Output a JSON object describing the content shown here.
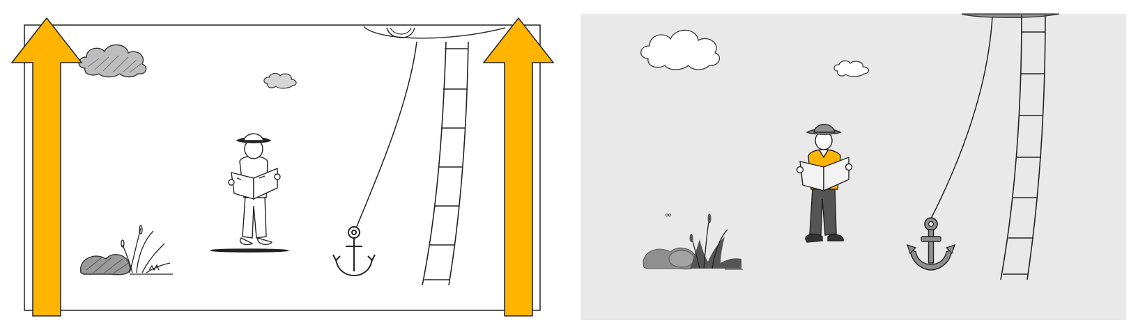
{
  "colors": {
    "background": "#ffffff",
    "right_panel_bg": "#e9e9e9",
    "accent": "#ffb400",
    "line": "#222222",
    "grey_fill": "#8f8f8f",
    "dark_grey": "#555555",
    "light_grey": "#cfcfcf"
  },
  "left_panel": {
    "style": "sketch",
    "elements": [
      "cloud-icon",
      "cloud-icon",
      "ufo-icon",
      "rope-icon",
      "ladder-icon",
      "explorer-icon",
      "map-icon",
      "anchor-icon",
      "rocks-icon",
      "grass-icon",
      "arrow-up-icon",
      "arrow-up-icon"
    ]
  },
  "right_panel": {
    "style": "colored",
    "elements": [
      "cloud-icon",
      "cloud-icon",
      "ufo-icon",
      "rope-icon",
      "ladder-icon",
      "explorer-icon",
      "map-icon",
      "anchor-icon",
      "rocks-icon",
      "grass-icon"
    ]
  }
}
